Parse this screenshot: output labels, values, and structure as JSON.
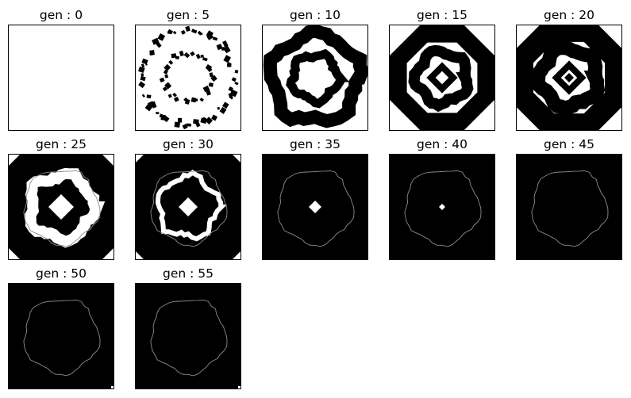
{
  "panels": [
    {
      "title": "gen : 0",
      "gen": 0
    },
    {
      "title": "gen : 5",
      "gen": 5
    },
    {
      "title": "gen : 10",
      "gen": 10
    },
    {
      "title": "gen : 15",
      "gen": 15
    },
    {
      "title": "gen : 20",
      "gen": 20
    },
    {
      "title": "gen : 25",
      "gen": 25
    },
    {
      "title": "gen : 30",
      "gen": 30
    },
    {
      "title": "gen : 35",
      "gen": 35
    },
    {
      "title": "gen : 40",
      "gen": 40
    },
    {
      "title": "gen : 45",
      "gen": 45
    },
    {
      "title": "gen : 50",
      "gen": 50
    },
    {
      "title": "gen : 55",
      "gen": 55
    }
  ],
  "colors": {
    "cell": "#000000",
    "background": "#ffffff",
    "ring_line": "#8c8c8c",
    "frame": "#000000"
  }
}
